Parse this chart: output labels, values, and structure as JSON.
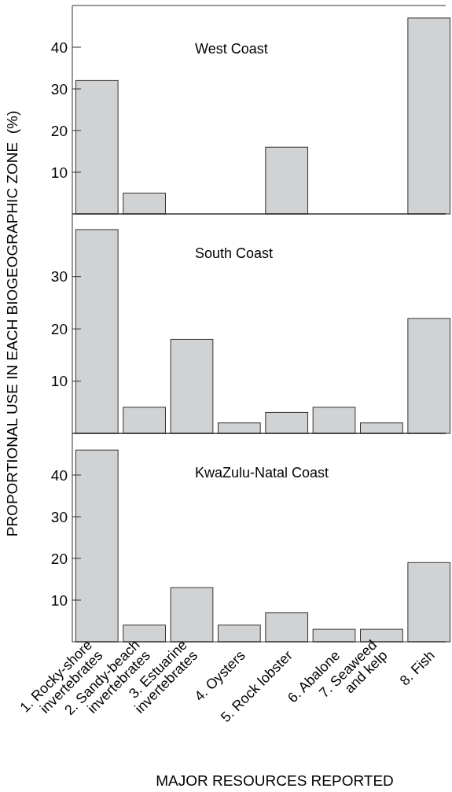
{
  "chart_data": [
    {
      "type": "bar",
      "title": "West Coast",
      "categories": [
        null,
        null,
        null,
        null,
        null,
        null,
        null,
        null
      ],
      "values": [
        32,
        5,
        0,
        0,
        16,
        0,
        0,
        47
      ],
      "color": "#d1d2d4",
      "ylim": [
        0,
        50
      ],
      "yticks": [
        10,
        20,
        30,
        40
      ],
      "tick_labels": "y"
    },
    {
      "type": "bar",
      "title": "South Coast",
      "ylabel": "PROPORTIONAL USE IN EACH BIOGEOGRAPHIC ZONE  (%)",
      "categories": [
        null,
        null,
        null,
        null,
        null,
        null,
        null,
        null
      ],
      "values": [
        39,
        5,
        18,
        2,
        4,
        5,
        2,
        22
      ],
      "color": "#d1d2d4",
      "ylim": [
        0,
        42
      ],
      "yticks": [
        10,
        20,
        30
      ],
      "tick_labels": "y"
    },
    {
      "type": "bar",
      "title": "KwaZulu-Natal Coast",
      "xlabel": "MAJOR RESOURCES REPORTED",
      "categories": [
        "1. Rocky-shore\ninvertebrates",
        "2. Sandy-beach\ninvertebrates",
        "3. Estuarine\ninvertebrates",
        "4. Oysters",
        "5. Rock lobster",
        "6. Abalone",
        "7. Seaweed\nand kelp",
        "8. Fish"
      ],
      "values": [
        46,
        4,
        13,
        4,
        7,
        3,
        3,
        19
      ],
      "color": "#d1d2d4",
      "ylim": [
        0,
        50
      ],
      "yticks": [
        10,
        20,
        30,
        40
      ]
    }
  ]
}
